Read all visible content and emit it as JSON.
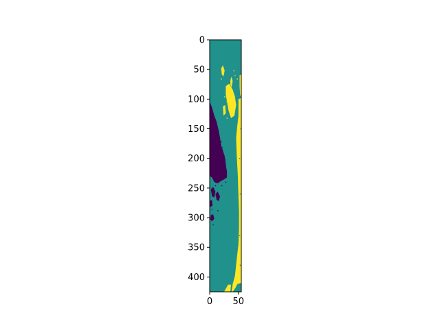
{
  "chart_data": {
    "type": "heatmap",
    "title": "",
    "xlabel": "",
    "ylabel": "",
    "xlim": [
      0,
      55
    ],
    "ylim": [
      425,
      0
    ],
    "x_ticks": [
      0,
      50
    ],
    "y_ticks": [
      0,
      50,
      100,
      150,
      200,
      250,
      300,
      350,
      400
    ],
    "x_tick_labels": [
      "0",
      "50"
    ],
    "y_tick_labels": [
      "0",
      "50",
      "100",
      "150",
      "200",
      "250",
      "300",
      "350",
      "400"
    ],
    "colormap": "viridis",
    "classes": [
      {
        "value": 0,
        "color": "#440154"
      },
      {
        "value": 1,
        "color": "#21918c"
      },
      {
        "value": 2,
        "color": "#fde725"
      }
    ],
    "background_value": 1,
    "regions": [
      {
        "value": 2,
        "polygon": [
          [
            50,
            128
          ],
          [
            55,
            124
          ],
          [
            55,
            410
          ],
          [
            48,
            412
          ],
          [
            45,
            418
          ],
          [
            40,
            425
          ],
          [
            38,
            425
          ],
          [
            40,
            412
          ],
          [
            44,
            398
          ],
          [
            47,
            370
          ],
          [
            50,
            345
          ],
          [
            51,
            320
          ],
          [
            51,
            290
          ],
          [
            50,
            262
          ],
          [
            49,
            230
          ],
          [
            47,
            195
          ],
          [
            46,
            165
          ],
          [
            48,
            145
          ]
        ]
      },
      {
        "value": 2,
        "polygon": [
          [
            25,
            425
          ],
          [
            32,
            413
          ],
          [
            37,
            413
          ],
          [
            36,
            425
          ]
        ]
      },
      {
        "value": 2,
        "polygon": [
          [
            20,
            48
          ],
          [
            23,
            43
          ],
          [
            26,
            52
          ],
          [
            24,
            62
          ],
          [
            21,
            58
          ]
        ]
      },
      {
        "value": 2,
        "polygon": [
          [
            36,
            68
          ],
          [
            38,
            62
          ],
          [
            40,
            70
          ],
          [
            38,
            80
          ],
          [
            36,
            76
          ]
        ]
      },
      {
        "value": 2,
        "polygon": [
          [
            52,
            60
          ],
          [
            55,
            58
          ],
          [
            55,
            90
          ],
          [
            53,
            96
          ],
          [
            52,
            78
          ]
        ]
      },
      {
        "value": 2,
        "polygon": [
          [
            28,
            78
          ],
          [
            34,
            74
          ],
          [
            40,
            84
          ],
          [
            44,
            96
          ],
          [
            46,
            110
          ],
          [
            43,
            128
          ],
          [
            37,
            132
          ],
          [
            33,
            120
          ],
          [
            30,
            104
          ],
          [
            28,
            92
          ]
        ]
      },
      {
        "value": 2,
        "polygon": [
          [
            23,
            112
          ],
          [
            27,
            110
          ],
          [
            28,
            124
          ],
          [
            24,
            128
          ]
        ]
      },
      {
        "value": 2,
        "polygon": [
          [
            50,
            100
          ],
          [
            55,
            98
          ],
          [
            55,
            126
          ],
          [
            50,
            128
          ]
        ]
      },
      {
        "value": 0,
        "polygon": [
          [
            0,
            104
          ],
          [
            4,
            114
          ],
          [
            8,
            128
          ],
          [
            12,
            138
          ],
          [
            15,
            150
          ],
          [
            18,
            165
          ],
          [
            20,
            178
          ],
          [
            24,
            190
          ],
          [
            27,
            200
          ],
          [
            28,
            210
          ],
          [
            30,
            222
          ],
          [
            30,
            232
          ],
          [
            26,
            235
          ],
          [
            20,
            238
          ],
          [
            14,
            242
          ],
          [
            8,
            240
          ],
          [
            4,
            232
          ],
          [
            0,
            230
          ]
        ]
      },
      {
        "value": 0,
        "polygon": [
          [
            14,
            200
          ],
          [
            18,
            198
          ],
          [
            22,
            210
          ],
          [
            20,
            220
          ],
          [
            16,
            215
          ]
        ]
      },
      {
        "value": 0,
        "polygon": [
          [
            2,
            252
          ],
          [
            6,
            248
          ],
          [
            10,
            256
          ],
          [
            8,
            266
          ],
          [
            4,
            264
          ]
        ]
      },
      {
        "value": 0,
        "polygon": [
          [
            10,
            260
          ],
          [
            14,
            256
          ],
          [
            18,
            264
          ],
          [
            16,
            272
          ],
          [
            12,
            270
          ]
        ]
      },
      {
        "value": 0,
        "polygon": [
          [
            0,
            272
          ],
          [
            4,
            270
          ],
          [
            5,
            280
          ],
          [
            0,
            282
          ]
        ]
      },
      {
        "value": 0,
        "polygon": [
          [
            2,
            296
          ],
          [
            6,
            294
          ],
          [
            8,
            302
          ],
          [
            4,
            306
          ],
          [
            1,
            303
          ]
        ]
      }
    ],
    "speckles": [
      {
        "value": 0,
        "points": [
          [
            6,
            150
          ],
          [
            10,
            158
          ],
          [
            20,
            172
          ],
          [
            22,
            182
          ],
          [
            25,
            195
          ],
          [
            12,
            188
          ],
          [
            8,
            205
          ],
          [
            24,
            218
          ],
          [
            18,
            228
          ],
          [
            28,
            240
          ],
          [
            10,
            246
          ],
          [
            4,
            286
          ],
          [
            14,
            288
          ],
          [
            6,
            312
          ],
          [
            21,
            246
          ]
        ]
      },
      {
        "value": 2,
        "points": [
          [
            20,
            66
          ],
          [
            44,
            60
          ],
          [
            48,
            66
          ],
          [
            26,
            96
          ],
          [
            42,
            52
          ],
          [
            30,
            132
          ],
          [
            52,
            140
          ],
          [
            54,
            170
          ],
          [
            30,
            104
          ]
        ]
      },
      {
        "value": 1,
        "points": [
          [
            52,
            200
          ],
          [
            53,
            260
          ],
          [
            52,
            330
          ],
          [
            53,
            380
          ],
          [
            54,
            150
          ]
        ]
      }
    ]
  }
}
